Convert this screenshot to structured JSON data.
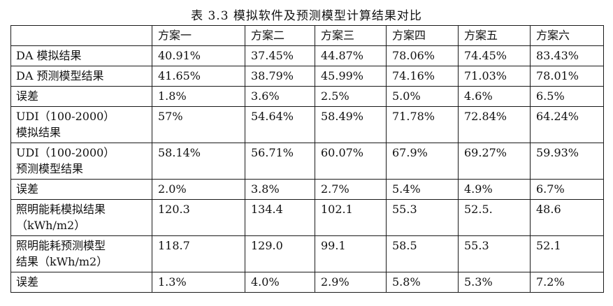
{
  "caption": "表 3.3 模拟软件及预测模型计算结果对比",
  "table": {
    "headers": [
      "",
      "方案一",
      "方案二",
      "方案三",
      "方案四",
      "方案五",
      "方案六"
    ],
    "rows": [
      {
        "label": "DA 模拟结果",
        "cells": [
          "40.91%",
          "37.45%",
          "44.87%",
          "78.06%",
          "74.45%",
          "83.43%"
        ]
      },
      {
        "label": "DA 预测模型结果",
        "cells": [
          "41.65%",
          "38.79%",
          "45.99%",
          "74.16%",
          "71.03%",
          "78.01%"
        ]
      },
      {
        "label": "误差",
        "cells": [
          "1.8%",
          "3.6%",
          "2.5%",
          "5.0%",
          "4.6%",
          "6.5%"
        ]
      },
      {
        "label": "UDI（100-2000）\n模拟结果",
        "cells": [
          "57%",
          "54.64%",
          "58.49%",
          "71.78%",
          "72.84%",
          "64.24%"
        ]
      },
      {
        "label": "UDI（100-2000）\n预测模型结果",
        "cells": [
          "58.14%",
          "56.71%",
          "60.07%",
          "67.9%",
          "69.27%",
          "59.93%"
        ]
      },
      {
        "label": "误差",
        "cells": [
          "2.0%",
          "3.8%",
          "2.7%",
          "5.4%",
          "4.9%",
          "6.7%"
        ]
      },
      {
        "label": "照明能耗模拟结果\n（kWh/m2）",
        "cells": [
          "120.3",
          "134.4",
          "102.1",
          "55.3",
          "52.5.",
          "48.6"
        ]
      },
      {
        "label": "照明能耗预测模型\n结果（kWh/m2）",
        "cells": [
          "118.7",
          "129.0",
          "99.1",
          "58.5",
          "55.3",
          "52.1"
        ]
      },
      {
        "label": "误差",
        "cells": [
          "1.3%",
          "4.0%",
          "2.9%",
          "5.8%",
          "5.3%",
          "7.2%"
        ]
      }
    ]
  }
}
